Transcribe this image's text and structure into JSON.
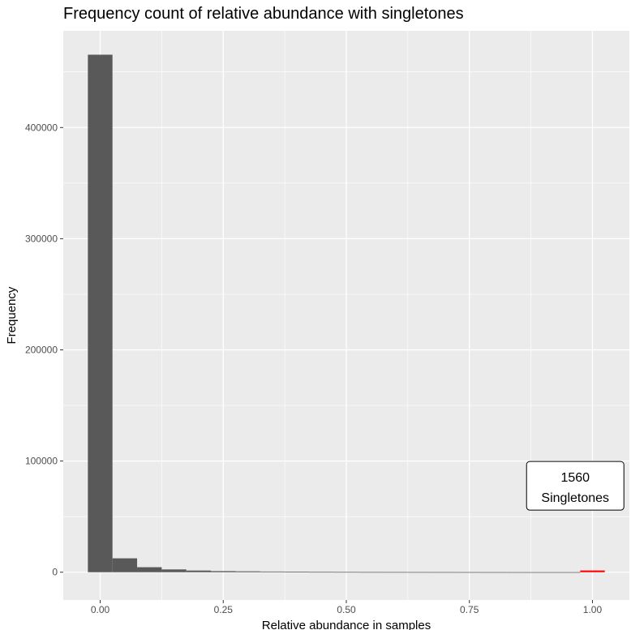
{
  "chart_data": {
    "type": "bar",
    "title": "Frequency count of relative abundance with singletones",
    "xlabel": "Relative abundance in samples",
    "ylabel": "Frequency",
    "xlim": [
      -0.075,
      1.075
    ],
    "ylim": [
      -25000,
      487000
    ],
    "grid": true,
    "bin_width": 0.05,
    "xticks": [
      {
        "value": 0,
        "label": "0.00"
      },
      {
        "value": 0.25,
        "label": "0.25"
      },
      {
        "value": 0.5,
        "label": "0.50"
      },
      {
        "value": 0.75,
        "label": "0.75"
      },
      {
        "value": 1,
        "label": "1.00"
      }
    ],
    "yticks": [
      {
        "value": 0,
        "label": "0"
      },
      {
        "value": 100000,
        "label": "100000"
      },
      {
        "value": 200000,
        "label": "200000"
      },
      {
        "value": 300000,
        "label": "300000"
      },
      {
        "value": 400000,
        "label": "400000"
      }
    ],
    "bins": [
      {
        "x": 0.0,
        "value": 465500
      },
      {
        "x": 0.05,
        "value": 12500
      },
      {
        "x": 0.1,
        "value": 4500
      },
      {
        "x": 0.15,
        "value": 2500
      },
      {
        "x": 0.2,
        "value": 1500
      },
      {
        "x": 0.25,
        "value": 1000
      },
      {
        "x": 0.3,
        "value": 800
      },
      {
        "x": 0.35,
        "value": 600
      },
      {
        "x": 0.4,
        "value": 400
      },
      {
        "x": 0.45,
        "value": 300
      },
      {
        "x": 0.5,
        "value": 250
      },
      {
        "x": 0.55,
        "value": 200
      },
      {
        "x": 0.6,
        "value": 180
      },
      {
        "x": 0.65,
        "value": 160
      },
      {
        "x": 0.7,
        "value": 140
      },
      {
        "x": 0.75,
        "value": 120
      },
      {
        "x": 0.8,
        "value": 100
      },
      {
        "x": 0.85,
        "value": 90
      },
      {
        "x": 0.9,
        "value": 80
      },
      {
        "x": 0.95,
        "value": 70
      }
    ],
    "highlight": {
      "x": 1.0,
      "value": 1560,
      "color": "#ff0000"
    },
    "annotation": {
      "line1": "1560",
      "line2": "Singletones",
      "x": 0.965,
      "y": 77000
    },
    "colors": {
      "bar": "#595959",
      "panel": "#ebebeb",
      "grid": "#ffffff",
      "highlight": "#ff0000"
    }
  }
}
